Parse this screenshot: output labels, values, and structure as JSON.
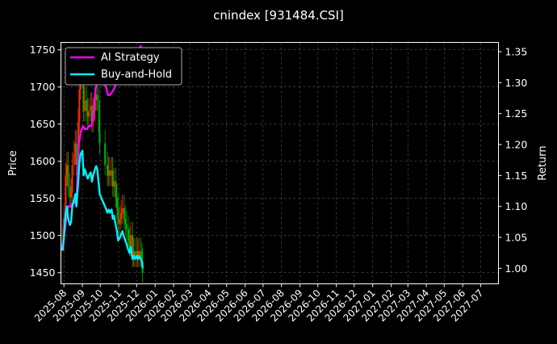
{
  "chart_data": {
    "type": "line",
    "title": "cnindex [931484.CSI]",
    "xlabel": "",
    "ylabel": "Price",
    "y2label": "Return",
    "x_ticks": [
      "2025-08",
      "2025-09",
      "2025-10",
      "2025-11",
      "2025-12",
      "2026-01",
      "2026-02",
      "2026-03",
      "2026-04",
      "2026-05",
      "2026-06",
      "2026-07",
      "2026-08",
      "2026-09",
      "2026-10",
      "2026-11",
      "2026-12",
      "2027-01",
      "2027-02",
      "2027-03",
      "2027-04",
      "2027-05",
      "2027-06",
      "2027-07"
    ],
    "y_ticks": [
      1450,
      1500,
      1550,
      1600,
      1650,
      1700,
      1750
    ],
    "y2_ticks": [
      "1.00",
      "1.05",
      "1.10",
      "1.15",
      "1.20",
      "1.25",
      "1.30",
      "1.35"
    ],
    "xlim": [
      "2025-07-27",
      "2027-07-31"
    ],
    "ylim": [
      1435,
      1760
    ],
    "y2lim": [
      0.975,
      1.365
    ],
    "grid": true,
    "legend_position": "top-left",
    "colors": {
      "background": "#000000",
      "ai_strategy": "#ff00ff",
      "buy_and_hold": "#00f0ff",
      "candle_up": "#ff2a00",
      "candle_down": "#00b000",
      "grid": "#555555"
    },
    "series": [
      {
        "name": "AI Strategy",
        "axis": "right",
        "x": [
          "2025-07-28",
          "2025-08-01",
          "2025-08-05",
          "2025-08-08",
          "2025-08-12",
          "2025-08-15",
          "2025-08-19",
          "2025-08-22",
          "2025-08-26",
          "2025-08-29",
          "2025-09-02",
          "2025-09-05",
          "2025-09-09",
          "2025-09-12",
          "2025-09-16",
          "2025-09-19",
          "2025-09-23",
          "2025-09-26",
          "2025-09-30",
          "2025-10-10",
          "2025-10-14",
          "2025-10-17",
          "2025-10-21",
          "2025-10-24",
          "2025-10-28",
          "2025-10-31",
          "2025-11-04",
          "2025-11-07",
          "2025-11-11",
          "2025-11-14",
          "2025-11-18",
          "2025-11-21",
          "2025-11-25",
          "2025-11-28",
          "2025-12-02",
          "2025-12-05",
          "2025-12-09"
        ],
        "values": [
          1.03,
          1.05,
          1.08,
          1.1,
          1.1,
          1.105,
          1.105,
          1.11,
          1.2,
          1.22,
          1.23,
          1.225,
          1.225,
          1.23,
          1.23,
          1.24,
          1.29,
          1.3,
          1.3,
          1.295,
          1.28,
          1.28,
          1.285,
          1.29,
          1.3,
          1.3,
          1.31,
          1.31,
          1.32,
          1.325,
          1.33,
          1.335,
          1.34,
          1.345,
          1.35,
          1.355,
          1.36
        ]
      },
      {
        "name": "Buy-and-Hold",
        "axis": "right",
        "x": [
          "2025-07-28",
          "2025-07-30",
          "2025-08-01",
          "2025-08-04",
          "2025-08-06",
          "2025-08-08",
          "2025-08-11",
          "2025-08-13",
          "2025-08-15",
          "2025-08-18",
          "2025-08-20",
          "2025-08-22",
          "2025-08-25",
          "2025-08-27",
          "2025-08-29",
          "2025-09-01",
          "2025-09-03",
          "2025-09-05",
          "2025-09-08",
          "2025-09-10",
          "2025-09-12",
          "2025-09-15",
          "2025-09-17",
          "2025-09-19",
          "2025-09-22",
          "2025-09-24",
          "2025-09-26",
          "2025-09-29",
          "2025-09-30",
          "2025-10-09",
          "2025-10-13",
          "2025-10-15",
          "2025-10-17",
          "2025-10-20",
          "2025-10-22",
          "2025-10-24",
          "2025-10-27",
          "2025-10-29",
          "2025-10-31",
          "2025-11-03",
          "2025-11-05",
          "2025-11-07",
          "2025-11-10",
          "2025-11-12",
          "2025-11-14",
          "2025-11-17",
          "2025-11-19",
          "2025-11-21",
          "2025-11-24",
          "2025-11-26",
          "2025-11-28",
          "2025-12-01",
          "2025-12-03",
          "2025-12-05",
          "2025-12-08",
          "2025-12-10",
          "2025-12-11"
        ],
        "values": [
          1.03,
          1.03,
          1.05,
          1.09,
          1.1,
          1.08,
          1.07,
          1.075,
          1.1,
          1.11,
          1.12,
          1.1,
          1.14,
          1.17,
          1.185,
          1.19,
          1.15,
          1.16,
          1.15,
          1.145,
          1.15,
          1.155,
          1.14,
          1.15,
          1.16,
          1.165,
          1.16,
          1.13,
          1.12,
          1.1,
          1.09,
          1.095,
          1.09,
          1.095,
          1.08,
          1.085,
          1.07,
          1.06,
          1.045,
          1.05,
          1.055,
          1.06,
          1.05,
          1.045,
          1.04,
          1.03,
          1.025,
          1.035,
          1.015,
          1.02,
          1.015,
          1.02,
          1.015,
          1.02,
          1.015,
          1.01,
          1.0
        ]
      }
    ]
  }
}
